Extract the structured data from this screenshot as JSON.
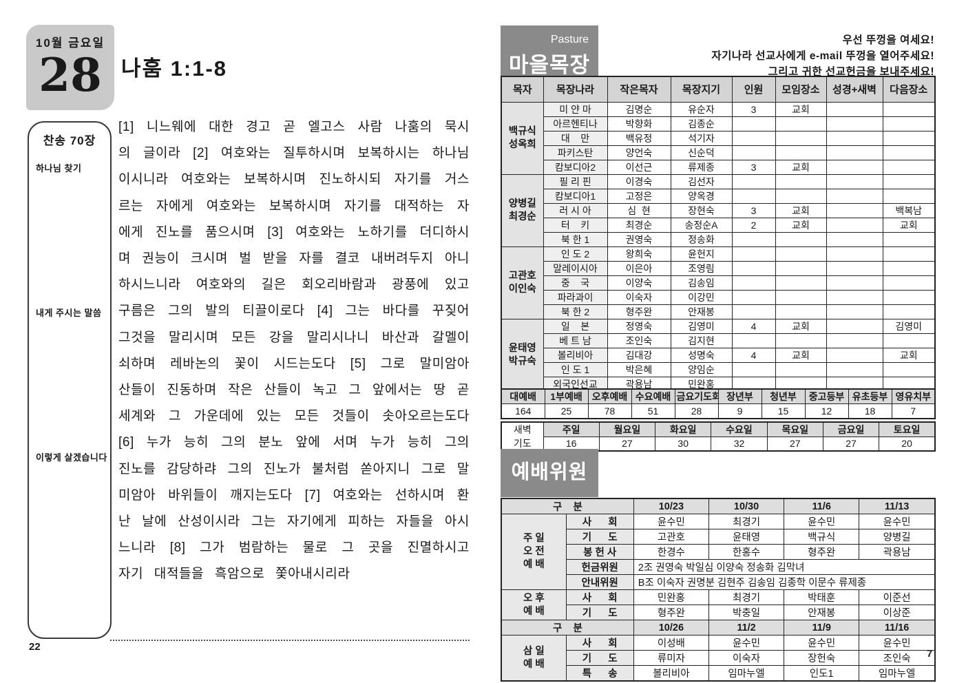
{
  "colors": {
    "box_gray": "#8a8a8a",
    "date_block_gray": "#c9c9c9",
    "table_header_gray": "#d4d4d4",
    "leader_cell_gray": "#e3e3e3",
    "country_cell_gray": "#efefef"
  },
  "page_left": {
    "page_number": "22",
    "date_block": {
      "top": "10월 금요일",
      "day": "28"
    },
    "title": "나훔 1:1-8",
    "sidebar": {
      "hymn": "찬송 70장",
      "items": [
        "하나님 찾기",
        "내게 주시는 말씀",
        "이렇게 살겠습니다"
      ]
    },
    "scripture": "[1] 니느웨에 대한 경고 곧 엘고스 사람 나훔의 묵시의 글이라 [2] 여호와는 질투하시며 보복하시는 하나님이시니라 여호와는 보복하시며 진노하시되 자기를 거스르는 자에게 여호와는 보복하시며 자기를 대적하는 자에게 진노를 품으시며 [3] 여호와는 노하기를 더디하시며 권능이 크시며 벌 받을 자를 결코 내버려두지 아니하시느니라 여호와의 길은 회오리바람과 광풍에 있고 구름은 그의 발의 티끌이로다 [4] 그는 바다를 꾸짖어 그것을 말리시며 모든 강을 말리시나니 바산과 갈멜이 쇠하며 레바논의 꽃이 시드는도다 [5] 그로 말미암아 산들이 진동하며 작은 산들이 녹고 그 앞에서는 땅 곧 세계와 그 가운데에 있는 모든 것들이 솟아오르는도다 [6] 누가 능히 그의 분노 앞에 서며 누가 능히 그의 진노를 감당하랴 그의 진노가 불처럼 쏟아지니 그로 말미암아 바위들이 깨지는도다 [7] 여호와는 선하시며 환난 날에 산성이시라 그는 자기에게 피하는 자들을 아시느니라 [8] 그가 범람하는 물로 그 곳을 진멸하시고 자기 대적들을 흑암으로 쫓아내시리라"
  },
  "page_right": {
    "page_number": "7",
    "pasture": {
      "tag": "Pasture",
      "title": "마을목장",
      "notice_lines": [
        "우선 뚜껑을 여세요!",
        "자기나라 선교사에게 e-mail 뚜껑을 열어주세요!",
        "그리고 귀한 선교헌금을 보내주세요!"
      ],
      "columns": [
        "목자",
        "목장나라",
        "작은목자",
        "목장지기",
        "인원",
        "모임장소",
        "성경+새벽",
        "다음장소"
      ],
      "groups": [
        {
          "leader": [
            "백규식",
            "성옥희"
          ],
          "rows": [
            [
              "미 얀 마",
              "김명순",
              "유순자",
              "3",
              "교회",
              "",
              ""
            ],
            [
              "아르헨티나",
              "박향화",
              "김종순",
              "",
              "",
              "",
              ""
            ],
            [
              "대    만",
              "백유정",
              "석기자",
              "",
              "",
              "",
              ""
            ],
            [
              "파키스탄",
              "양언숙",
              "신순덕",
              "",
              "",
              "",
              ""
            ],
            [
              "캄보디아2",
              "이선근",
              "류제종",
              "3",
              "교회",
              "",
              ""
            ]
          ]
        },
        {
          "leader": [
            "양병길",
            "최경순"
          ],
          "rows": [
            [
              "필 리 핀",
              "이경숙",
              "김선자",
              "",
              "",
              "",
              ""
            ],
            [
              "캄보디아1",
              "고정은",
              "양옥경",
              "",
              "",
              "",
              ""
            ],
            [
              "러 시 아",
              "심  현",
              "장현숙",
              "3",
              "교회",
              "",
              "백복남"
            ],
            [
              "터    키",
              "최경순",
              "송정순A",
              "2",
              "교회",
              "",
              "교회"
            ],
            [
              "북 한 1",
              "권영숙",
              "정송화",
              "",
              "",
              "",
              ""
            ]
          ]
        },
        {
          "leader": [
            "고관호",
            "이인숙"
          ],
          "rows": [
            [
              "인 도 2",
              "왕희숙",
              "윤헌지",
              "",
              "",
              "",
              ""
            ],
            [
              "말레이시아",
              "이은아",
              "조영림",
              "",
              "",
              "",
              ""
            ],
            [
              "중    국",
              "이양숙",
              "김송임",
              "",
              "",
              "",
              ""
            ],
            [
              "파라과이",
              "이숙자",
              "이강민",
              "",
              "",
              "",
              ""
            ],
            [
              "북 한 2",
              "형주완",
              "안재봉",
              "",
              "",
              "",
              ""
            ]
          ]
        },
        {
          "leader": [
            "윤태영",
            "박규숙"
          ],
          "rows": [
            [
              "일    본",
              "정영숙",
              "김영미",
              "4",
              "교회",
              "",
              "김영미"
            ],
            [
              "베 트 남",
              "조인숙",
              "김지현",
              "",
              "",
              "",
              ""
            ],
            [
              "볼리비아",
              "김대강",
              "성명숙",
              "4",
              "교회",
              "",
              "교회"
            ],
            [
              "인 도 1",
              "박은혜",
              "양임순",
              "",
              "",
              "",
              ""
            ],
            [
              "외국인선교",
              "곽용남",
              "민완홍",
              "",
              "",
              "",
              ""
            ]
          ]
        }
      ]
    },
    "attendance": {
      "headers": [
        "대예배",
        "1부예배",
        "오후예배",
        "수요예배",
        "금요기도회",
        "장년부",
        "청년부",
        "중고등부",
        "유초등부",
        "영유치부"
      ],
      "values": [
        "164",
        "25",
        "78",
        "51",
        "28",
        "9",
        "15",
        "12",
        "18",
        "7"
      ],
      "dawn_label": [
        "새벽",
        "기도"
      ],
      "dawn_days": [
        "주일",
        "월요일",
        "화요일",
        "수요일",
        "목요일",
        "금요일",
        "토요일"
      ],
      "dawn_values": [
        "16",
        "27",
        "30",
        "32",
        "27",
        "27",
        "20"
      ]
    },
    "worship": {
      "title": "예배위원",
      "sections": [
        {
          "header_label": "구    분",
          "dates": [
            "10/23",
            "10/30",
            "11/6",
            "11/13"
          ],
          "groups": [
            {
              "label": [
                "주 일",
                "오 전",
                "예 배"
              ],
              "rows": [
                {
                  "name": "사      회",
                  "values": [
                    "윤수민",
                    "최경기",
                    "윤수민",
                    "윤수민"
                  ]
                },
                {
                  "name": "기      도",
                  "values": [
                    "고관호",
                    "윤태영",
                    "백규식",
                    "양병길"
                  ]
                },
                {
                  "name": "봉 헌 사",
                  "values": [
                    "한경수",
                    "한홍수",
                    "형주완",
                    "곽용남"
                  ]
                },
                {
                  "name": "헌금위원",
                  "span": "2조 권영숙 박일심 이양숙 정송화 김막녀"
                },
                {
                  "name": "안내위원",
                  "span": "B조 이숙자 권명분 김현주 김송임 김종학 이문수 류제종"
                }
              ]
            },
            {
              "label": [
                "오 후",
                "예 배"
              ],
              "rows": [
                {
                  "name": "사      회",
                  "values": [
                    "민완홍",
                    "최경기",
                    "박태훈",
                    "이준선"
                  ]
                },
                {
                  "name": "기      도",
                  "values": [
                    "형주완",
                    "박충일",
                    "안재봉",
                    "이상준"
                  ]
                }
              ]
            }
          ]
        },
        {
          "header_label": "구    분",
          "dates": [
            "10/26",
            "11/2",
            "11/9",
            "11/16"
          ],
          "groups": [
            {
              "label": [
                "삼 일",
                "예 배"
              ],
              "rows": [
                {
                  "name": "사      회",
                  "values": [
                    "이성배",
                    "윤수민",
                    "윤수민",
                    "윤수민"
                  ]
                },
                {
                  "name": "기      도",
                  "values": [
                    "류미자",
                    "이숙자",
                    "장헌숙",
                    "조인숙"
                  ]
                },
                {
                  "name": "특      송",
                  "values": [
                    "볼리비아",
                    "임마누엘",
                    "인도1",
                    "임마누엘"
                  ]
                }
              ]
            }
          ]
        }
      ]
    }
  }
}
